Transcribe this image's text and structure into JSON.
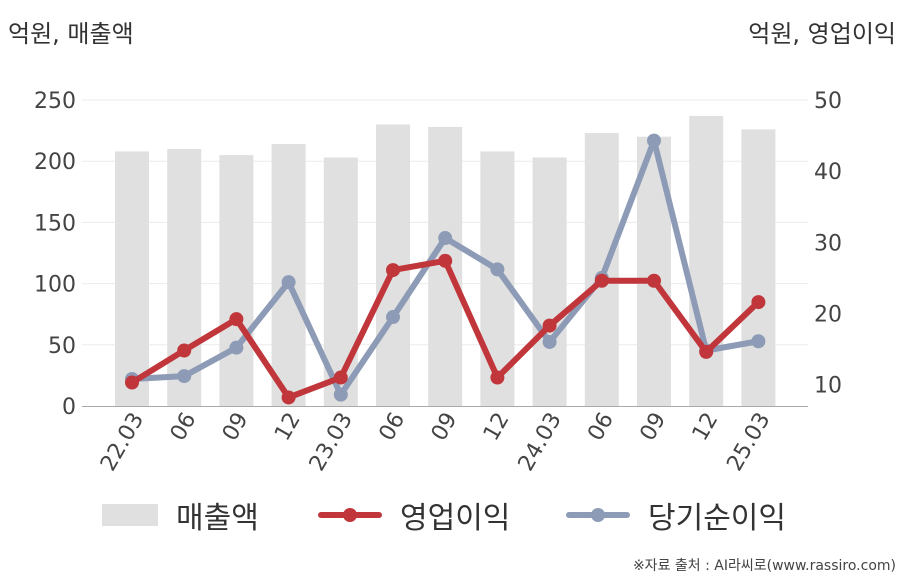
{
  "chart_data": {
    "type": "bar",
    "categories": [
      "22.03",
      "06",
      "09",
      "12",
      "23.03",
      "06",
      "09",
      "12",
      "24.03",
      "06",
      "09",
      "12",
      "25.03"
    ],
    "left_axis": {
      "unit_label": "억원, 매출액",
      "ylim": [
        0,
        250
      ],
      "ticks": [
        "0",
        "50",
        "100",
        "150",
        "200",
        "250"
      ]
    },
    "right_axis": {
      "unit_label": "억원, 영업이익",
      "ylim": [
        7,
        50
      ],
      "ticks": [
        "10",
        "20",
        "30",
        "40",
        "50"
      ]
    },
    "series": [
      {
        "name": "매출액",
        "type": "bar",
        "axis": "left",
        "color": "#e0e0e0",
        "values": [
          208,
          210,
          205,
          214,
          203,
          230,
          228,
          208,
          203,
          223,
          220,
          237,
          226
        ]
      },
      {
        "name": "영업이익",
        "type": "line",
        "axis": "right",
        "color": "#c0363a",
        "values": [
          10.3,
          14.8,
          19.2,
          8.2,
          11.0,
          26.1,
          27.4,
          11.0,
          18.3,
          24.6,
          24.6,
          14.6,
          21.6
        ]
      },
      {
        "name": "당기순이익",
        "type": "line",
        "axis": "right",
        "color": "#8d9bb6",
        "values": [
          10.8,
          11.2,
          15.2,
          24.4,
          8.6,
          19.5,
          30.6,
          26.2,
          16.0,
          25.0,
          44.3,
          14.8,
          16.1
        ]
      }
    ],
    "grid": true,
    "legend_position": "bottom"
  },
  "source_text": "※자료 출처 : AI라씨로(www.rassiro.com)"
}
